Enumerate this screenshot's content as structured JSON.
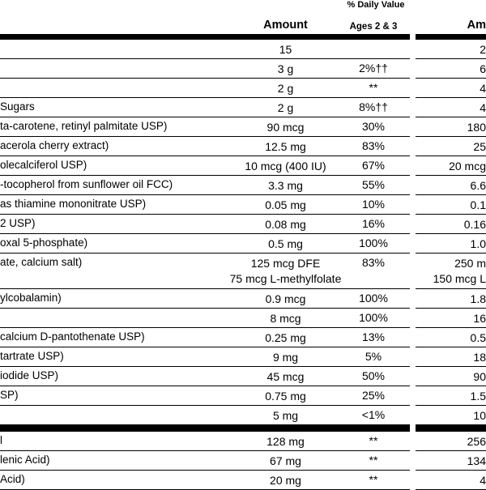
{
  "colors": {
    "background": "#ffffff",
    "text": "#000000",
    "rule": "#000000"
  },
  "header": {
    "daily_value_label": "% Daily Value",
    "left": {
      "amount": "Amount",
      "ages": "Ages 2 & 3"
    },
    "right": {
      "amount": "Am"
    }
  },
  "rows": [
    {
      "name": "",
      "amount": "15",
      "dv": "",
      "amount2": "2"
    },
    {
      "name": "",
      "amount": "3 g",
      "dv": "2%††",
      "amount2": "6"
    },
    {
      "name": "",
      "amount": "2 g",
      "dv": "**",
      "amount2": "4"
    },
    {
      "name": "Sugars",
      "amount": "2 g",
      "dv": "8%††",
      "amount2": "4"
    },
    {
      "name": "ta-carotene, retinyl palmitate USP)",
      "amount": "90 mcg",
      "dv": "30%",
      "amount2": "180"
    },
    {
      "name": "acerola cherry extract)",
      "amount": "12.5 mg",
      "dv": "83%",
      "amount2": "25"
    },
    {
      "name": "olecalciferol USP)",
      "amount": "10 mcg (400 IU)",
      "dv": "67%",
      "amount2": "20 mcg"
    },
    {
      "name": "-tocopherol from sunflower oil FCC)",
      "amount": "3.3 mg",
      "dv": "55%",
      "amount2": "6.6"
    },
    {
      "name": "as thiamine mononitrate USP)",
      "amount": "0.05 mg",
      "dv": "10%",
      "amount2": "0.1"
    },
    {
      "name": "2 USP)",
      "amount": "0.08 mg",
      "dv": "16%",
      "amount2": "0.16"
    },
    {
      "name": "oxal 5-phosphate)",
      "amount": "0.5 mg",
      "dv": "100%",
      "amount2": "1.0"
    },
    {
      "name": "ate, calcium salt)",
      "amount": "125 mcg DFE",
      "amount_line2": "75 mcg L-methylfolate",
      "dv": "83%",
      "amount2": "250 m",
      "amount2_line2": "150 mcg L"
    },
    {
      "name": "ylcobalamin)",
      "amount": "0.9 mcg",
      "dv": "100%",
      "amount2": "1.8"
    },
    {
      "name": "",
      "amount": "8 mcg",
      "dv": "100%",
      "amount2": "16"
    },
    {
      "name": "calcium D-pantothenate USP)",
      "amount": "0.25 mg",
      "dv": "13%",
      "amount2": "0.5"
    },
    {
      "name": "tartrate USP)",
      "amount": "9 mg",
      "dv": "5%",
      "amount2": "18"
    },
    {
      "name": "iodide USP)",
      "amount": "45 mcg",
      "dv": "50%",
      "amount2": "90"
    },
    {
      "name": "SP)",
      "amount": "0.75 mg",
      "dv": "25%",
      "amount2": "1.5"
    },
    {
      "name": "",
      "amount": "5 mg",
      "dv": "<1%",
      "amount2": "10"
    },
    {
      "separator": true
    },
    {
      "name": "l",
      "amount": "128 mg",
      "dv": "**",
      "amount2": "256"
    },
    {
      "name": "lenic Acid)",
      "amount": "67 mg",
      "dv": "**",
      "amount2": "134"
    },
    {
      "name": "Acid)",
      "amount": "20 mg",
      "dv": "**",
      "amount2": "4"
    }
  ]
}
